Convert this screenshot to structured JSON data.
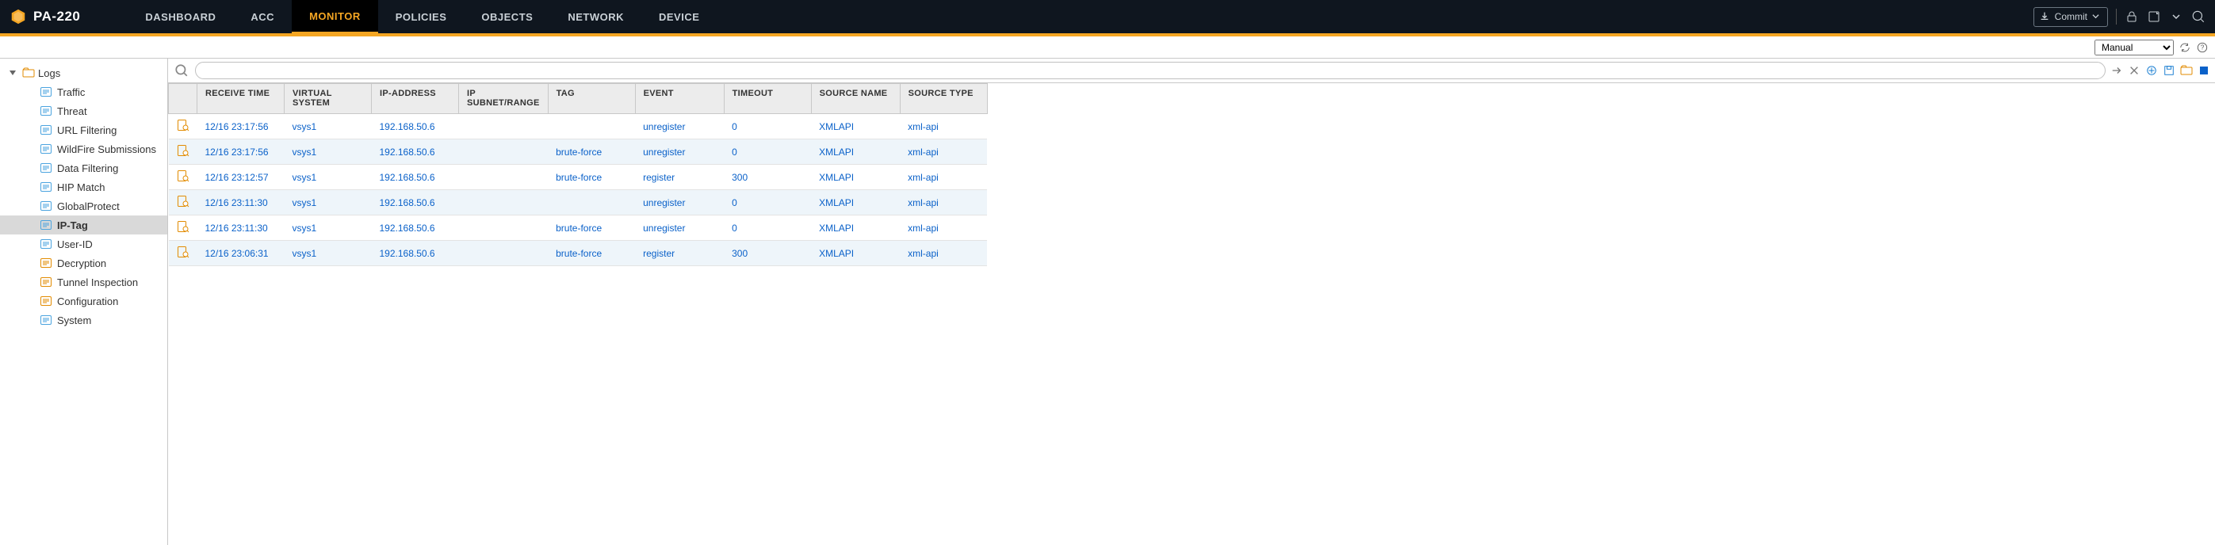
{
  "brand": {
    "name": "PA-220"
  },
  "nav": {
    "tabs": [
      {
        "label": "DASHBOARD",
        "active": false
      },
      {
        "label": "ACC",
        "active": false
      },
      {
        "label": "MONITOR",
        "active": true
      },
      {
        "label": "POLICIES",
        "active": false
      },
      {
        "label": "OBJECTS",
        "active": false
      },
      {
        "label": "NETWORK",
        "active": false
      },
      {
        "label": "DEVICE",
        "active": false
      }
    ],
    "commit_label": "Commit"
  },
  "filter": {
    "options": [
      "Manual"
    ],
    "selected": "Manual"
  },
  "sidebar": {
    "group_label": "Logs",
    "items": [
      {
        "label": "Traffic",
        "selected": false,
        "icon": "traffic"
      },
      {
        "label": "Threat",
        "selected": false,
        "icon": "threat"
      },
      {
        "label": "URL Filtering",
        "selected": false,
        "icon": "url"
      },
      {
        "label": "WildFire Submissions",
        "selected": false,
        "icon": "wildfire"
      },
      {
        "label": "Data Filtering",
        "selected": false,
        "icon": "data"
      },
      {
        "label": "HIP Match",
        "selected": false,
        "icon": "hip"
      },
      {
        "label": "GlobalProtect",
        "selected": false,
        "icon": "gp"
      },
      {
        "label": "IP-Tag",
        "selected": true,
        "icon": "iptag"
      },
      {
        "label": "User-ID",
        "selected": false,
        "icon": "userid"
      },
      {
        "label": "Decryption",
        "selected": false,
        "icon": "decrypt"
      },
      {
        "label": "Tunnel Inspection",
        "selected": false,
        "icon": "tunnel"
      },
      {
        "label": "Configuration",
        "selected": false,
        "icon": "config"
      },
      {
        "label": "System",
        "selected": false,
        "icon": "system"
      }
    ]
  },
  "sidebar_icon_colors": {
    "traffic": "#4aa3df",
    "threat": "#4aa3df",
    "url": "#4aa3df",
    "wildfire": "#4aa3df",
    "data": "#4aa3df",
    "hip": "#4aa3df",
    "gp": "#4aa3df",
    "iptag": "#4aa3df",
    "userid": "#4aa3df",
    "decrypt": "#e28b00",
    "tunnel": "#e28b00",
    "config": "#e28b00",
    "system": "#4aa3df"
  },
  "search": {
    "value": ""
  },
  "table": {
    "columns": [
      {
        "label": "",
        "width": 30
      },
      {
        "label": "RECEIVE TIME",
        "width": 110
      },
      {
        "label": "VIRTUAL SYSTEM",
        "width": 110
      },
      {
        "label": "IP-ADDRESS",
        "width": 110
      },
      {
        "label": "IP SUBNET/RANGE",
        "width": 112
      },
      {
        "label": "TAG",
        "width": 110
      },
      {
        "label": "EVENT",
        "width": 112
      },
      {
        "label": "TIMEOUT",
        "width": 110
      },
      {
        "label": "SOURCE NAME",
        "width": 112
      },
      {
        "label": "SOURCE TYPE",
        "width": 110
      }
    ],
    "rows": [
      {
        "receive_time": "12/16 23:17:56",
        "vsys": "vsys1",
        "ip": "192.168.50.6",
        "subnet": "",
        "tag": "",
        "event": "unregister",
        "timeout": "0",
        "src_name": "XMLAPI",
        "src_type": "xml-api"
      },
      {
        "receive_time": "12/16 23:17:56",
        "vsys": "vsys1",
        "ip": "192.168.50.6",
        "subnet": "",
        "tag": "brute-force",
        "event": "unregister",
        "timeout": "0",
        "src_name": "XMLAPI",
        "src_type": "xml-api"
      },
      {
        "receive_time": "12/16 23:12:57",
        "vsys": "vsys1",
        "ip": "192.168.50.6",
        "subnet": "",
        "tag": "brute-force",
        "event": "register",
        "timeout": "300",
        "src_name": "XMLAPI",
        "src_type": "xml-api"
      },
      {
        "receive_time": "12/16 23:11:30",
        "vsys": "vsys1",
        "ip": "192.168.50.6",
        "subnet": "",
        "tag": "",
        "event": "unregister",
        "timeout": "0",
        "src_name": "XMLAPI",
        "src_type": "xml-api"
      },
      {
        "receive_time": "12/16 23:11:30",
        "vsys": "vsys1",
        "ip": "192.168.50.6",
        "subnet": "",
        "tag": "brute-force",
        "event": "unregister",
        "timeout": "0",
        "src_name": "XMLAPI",
        "src_type": "xml-api"
      },
      {
        "receive_time": "12/16 23:06:31",
        "vsys": "vsys1",
        "ip": "192.168.50.6",
        "subnet": "",
        "tag": "brute-force",
        "event": "register",
        "timeout": "300",
        "src_name": "XMLAPI",
        "src_type": "xml-api"
      }
    ],
    "link_color": "#0a61c9",
    "header_bg": "#ececec",
    "row_alt_bg": "#eef5fa",
    "border_color": "#c8c8c8"
  },
  "colors": {
    "brand_accent": "#f5a623",
    "topbar_bg": "#0f161f",
    "sidebar_selected_bg": "#d9d9d9"
  }
}
